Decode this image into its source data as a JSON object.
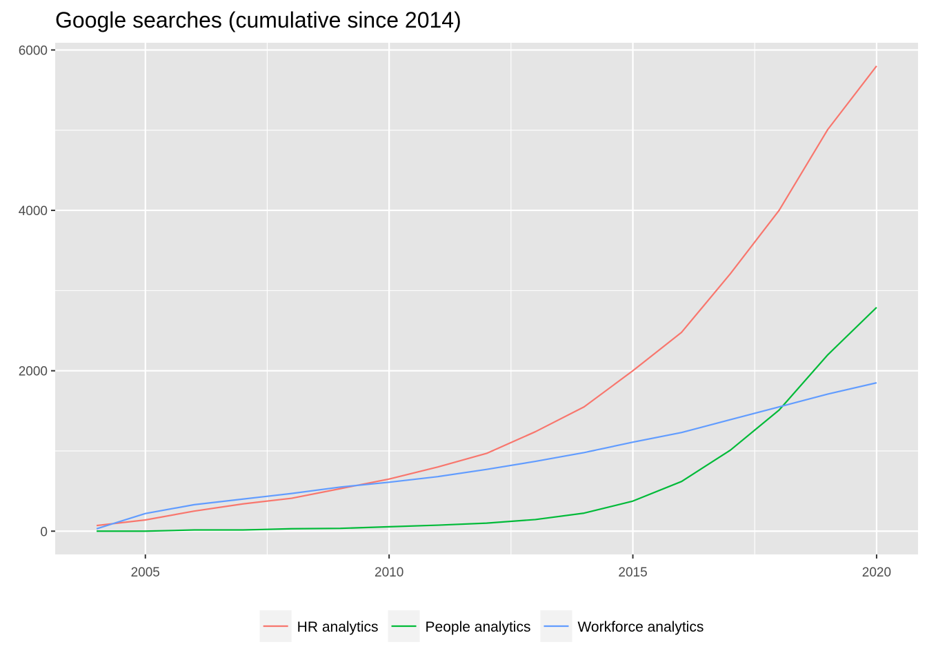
{
  "chart_data": {
    "type": "line",
    "title": "Google searches (cumulative since 2014)",
    "xlabel": "",
    "ylabel": "",
    "xlim": [
      2003.15,
      2020.85
    ],
    "ylim": [
      -290,
      6090
    ],
    "x_ticks": [
      2005,
      2010,
      2015,
      2020
    ],
    "x_minor_ticks": [
      2007.5,
      2012.5,
      2017.5
    ],
    "y_ticks": [
      0,
      2000,
      4000,
      6000
    ],
    "y_minor_ticks": [
      1000,
      3000,
      5000
    ],
    "x_tick_labels": [
      "2005",
      "2010",
      "2015",
      "2020"
    ],
    "y_tick_labels": [
      "0",
      "2000",
      "4000",
      "6000"
    ],
    "grid": true,
    "legend_position": "bottom",
    "x": [
      2004,
      2005,
      2006,
      2007,
      2008,
      2009,
      2010,
      2011,
      2012,
      2013,
      2014,
      2015,
      2016,
      2017,
      2018,
      2019,
      2020
    ],
    "series": [
      {
        "name": "HR analytics",
        "color": "#F8766D",
        "values": [
          70,
          140,
          250,
          340,
          410,
          530,
          650,
          800,
          970,
          1240,
          1550,
          2000,
          2480,
          3210,
          4000,
          5010,
          5800
        ]
      },
      {
        "name": "People analytics",
        "color": "#00BA38",
        "values": [
          0,
          0,
          15,
          15,
          30,
          35,
          55,
          75,
          100,
          145,
          225,
          375,
          620,
          1010,
          1510,
          2200,
          2790
        ]
      },
      {
        "name": "Workforce analytics",
        "color": "#619CFF",
        "values": [
          30,
          220,
          330,
          400,
          470,
          550,
          610,
          680,
          770,
          870,
          980,
          1110,
          1230,
          1390,
          1550,
          1710,
          1850
        ]
      }
    ]
  }
}
